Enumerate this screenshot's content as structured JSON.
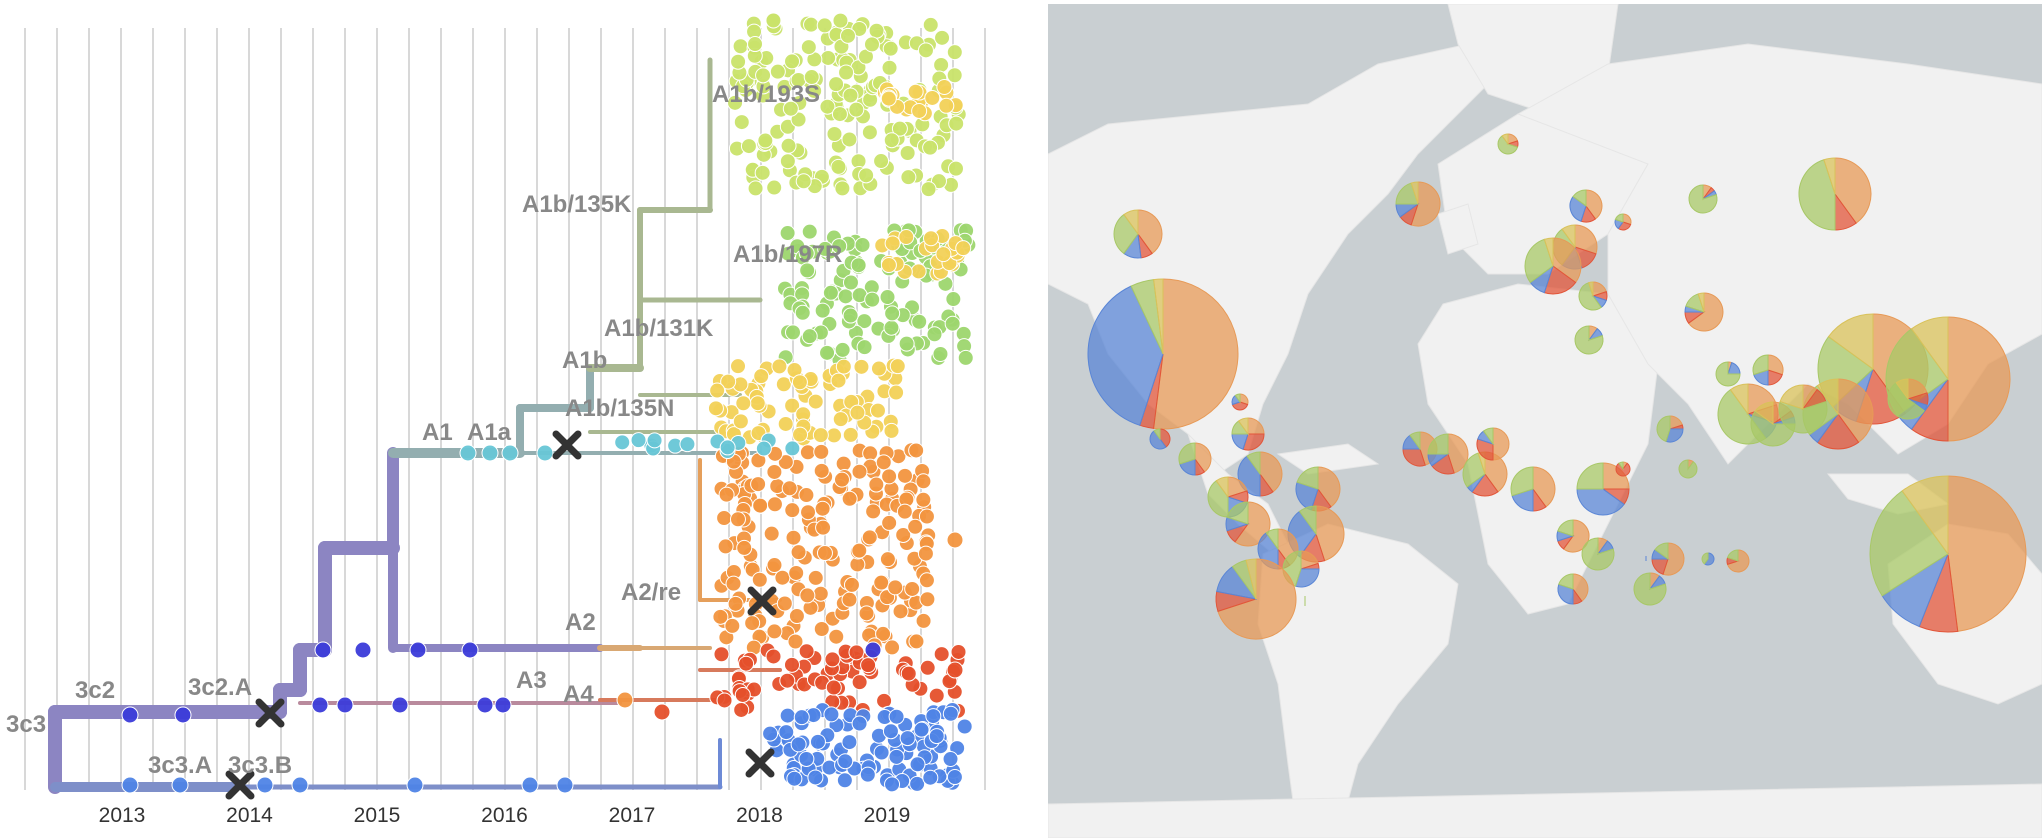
{
  "tree": {
    "years": [
      "2013",
      "2014",
      "2015",
      "2016",
      "2017",
      "2018",
      "2019"
    ],
    "clades": [
      {
        "key": "c3c3",
        "label": "3c3"
      },
      {
        "key": "c3c2",
        "label": "3c2"
      },
      {
        "key": "c3c2A",
        "label": "3c2.A"
      },
      {
        "key": "c3c3A",
        "label": "3c3.A"
      },
      {
        "key": "c3c3B",
        "label": "3c3.B"
      },
      {
        "key": "cA1",
        "label": "A1"
      },
      {
        "key": "cA1a",
        "label": "A1a"
      },
      {
        "key": "cA1b",
        "label": "A1b"
      },
      {
        "key": "cA1b135N",
        "label": "A1b/135N"
      },
      {
        "key": "cA1b131K",
        "label": "A1b/131K"
      },
      {
        "key": "cA1b197R",
        "label": "A1b/197R"
      },
      {
        "key": "cA1b135K",
        "label": "A1b/135K"
      },
      {
        "key": "cA1b193S",
        "label": "A1b/193S"
      },
      {
        "key": "cA2",
        "label": "A2"
      },
      {
        "key": "cA2re",
        "label": "A2/re"
      },
      {
        "key": "cA3",
        "label": "A3"
      },
      {
        "key": "cA4",
        "label": "A4"
      }
    ],
    "markers": [
      "x-marker",
      "x-marker",
      "x-marker",
      "x-marker",
      "x-marker"
    ],
    "colors": {
      "grid": "#d8d8d8",
      "trunk": "#8c85c2",
      "a1": "#93aeb0",
      "a1b": "#a9b891",
      "c3c3": "#7e8fc9",
      "a2": "#d9a873",
      "a3": "#d77a5c",
      "blue_tips": "#4f84e6",
      "dark_blue_tips": "#3b3bd9",
      "cyan_tips": "#67c6d6",
      "green_tips": "#9dd66e",
      "lime_tips": "#c9e36a",
      "yellow_tips": "#f2d157",
      "orange_tips": "#f2953f",
      "red_tips": "#e5502b",
      "label": "#888888"
    }
  },
  "map": {
    "colors": {
      "ocean": "#c9cfd2",
      "land": "#f1f1f1",
      "pie_blue": "#5a86d6",
      "pie_red": "#e2563a",
      "pie_orange": "#e79a57",
      "pie_yellow": "#d9c25a",
      "pie_green": "#a8c867"
    }
  }
}
